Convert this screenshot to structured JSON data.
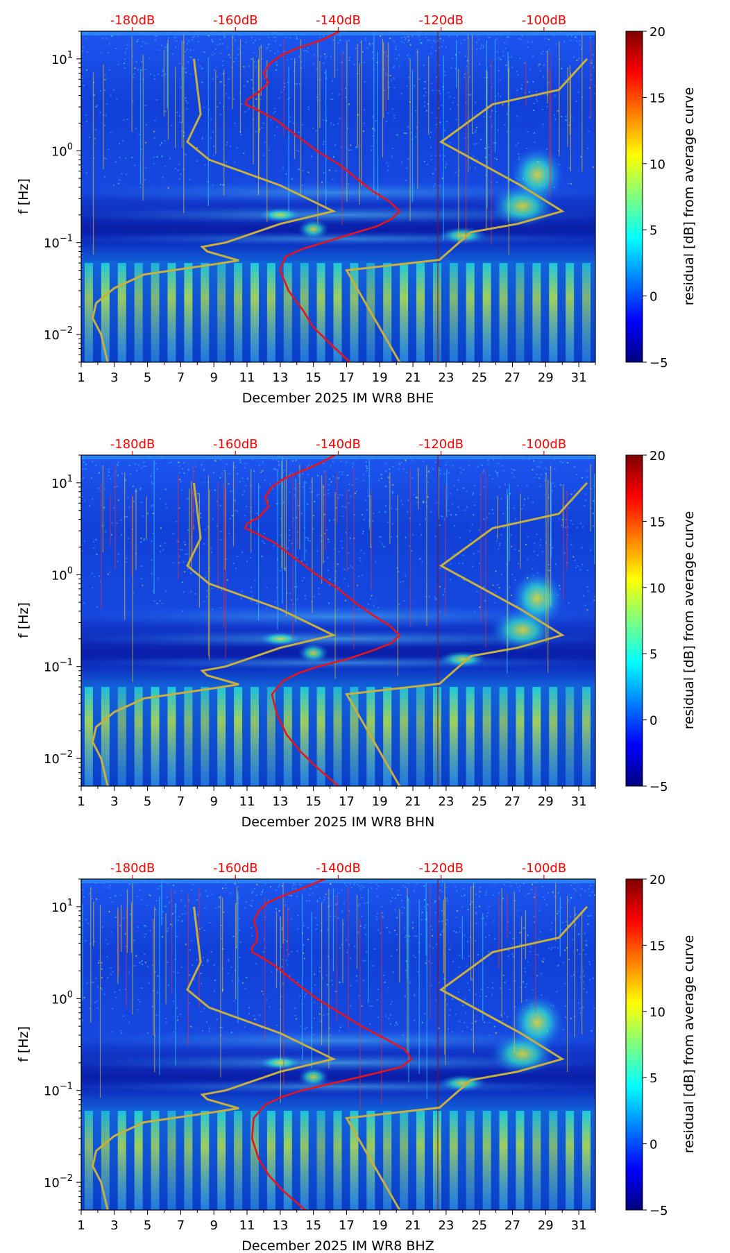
{
  "colorbar": {
    "label": "residual [dB] from average curve",
    "range": [
      -5,
      20
    ],
    "ticks": [
      "20",
      "15",
      "10",
      "5",
      "0",
      "−5"
    ],
    "tick_values": [
      20,
      15,
      10,
      5,
      0,
      -5
    ],
    "colormap": "jet",
    "colors": [
      "#00007f",
      "#0000ff",
      "#007fff",
      "#00ffff",
      "#7fff7f",
      "#ffff00",
      "#ff7f00",
      "#ff0000",
      "#7f0000"
    ]
  },
  "overlay_colors": {
    "median_curve": "#e8141c",
    "noise_models": "#c8b040",
    "db_labels": "#ff0000"
  },
  "chart_data": [
    {
      "type": "heatmap",
      "title": "December 2025 IM WR8  BHE",
      "xlabel": "December 2025 IM WR8  BHE",
      "ylabel": "f [Hz]",
      "xlim": [
        1,
        32
      ],
      "ylim": [
        0.005,
        20
      ],
      "yscale": "log",
      "x_ticks": [
        "1",
        "3",
        "5",
        "7",
        "9",
        "11",
        "13",
        "15",
        "17",
        "19",
        "21",
        "23",
        "25",
        "27",
        "29",
        "31"
      ],
      "y_ticks": [
        {
          "value": 10,
          "label": "10",
          "exp": "1"
        },
        {
          "value": 1,
          "label": "10",
          "exp": "0"
        },
        {
          "value": 0.1,
          "label": "10",
          "exp": "−1"
        },
        {
          "value": 0.01,
          "label": "10",
          "exp": "−2"
        }
      ],
      "db_axis": {
        "labels": [
          "-180dB",
          "-160dB",
          "-140dB",
          "-120dB",
          "-100dB"
        ],
        "day_positions": [
          4.1,
          10.3,
          16.5,
          22.7,
          28.9
        ]
      },
      "median_curve": {
        "name": "median PSD",
        "x": [
          17.2,
          16,
          15,
          14.4,
          13.5,
          13,
          13.3,
          14.3,
          15.6,
          17,
          18.8,
          19.7,
          20.2,
          19.6,
          18.6,
          17.6,
          16.6,
          15.2,
          13.9,
          12.7,
          11.6,
          10.9,
          11,
          11.6,
          12.3,
          12,
          12.4,
          13.1,
          14,
          15.5,
          16.6
        ],
        "y": [
          0.005,
          0.008,
          0.012,
          0.018,
          0.03,
          0.05,
          0.07,
          0.085,
          0.1,
          0.12,
          0.15,
          0.18,
          0.22,
          0.28,
          0.36,
          0.5,
          0.7,
          1,
          1.5,
          2.2,
          2.8,
          3.2,
          3.6,
          4.2,
          5.5,
          7,
          9,
          11,
          13,
          16,
          20
        ]
      },
      "noise_model_low": {
        "name": "NLNM",
        "x": [
          2.6,
          2.2,
          1.7,
          1.9,
          3,
          4.8,
          9,
          10.5,
          8.6,
          8.3,
          9.7,
          13,
          16.2,
          13,
          8.7,
          7.4,
          8.2,
          7.8
        ],
        "y": [
          0.005,
          0.01,
          0.015,
          0.022,
          0.032,
          0.045,
          0.058,
          0.064,
          0.08,
          0.09,
          0.1,
          0.16,
          0.22,
          0.42,
          0.8,
          1.25,
          2.5,
          10
        ]
      },
      "noise_model_high": {
        "name": "NHNM",
        "x": [
          20.2,
          17,
          22.6,
          24.5,
          27.3,
          30,
          27.5,
          22.7,
          25.8,
          29.8,
          31.5
        ],
        "y": [
          0.005,
          0.05,
          0.065,
          0.13,
          0.16,
          0.22,
          0.42,
          1.25,
          3.2,
          4.6,
          10
        ]
      }
    },
    {
      "type": "heatmap",
      "title": "December 2025 IM WR8  BHN",
      "xlabel": "December 2025 IM WR8  BHN",
      "ylabel": "f [Hz]",
      "xlim": [
        1,
        32
      ],
      "ylim": [
        0.005,
        20
      ],
      "yscale": "log",
      "x_ticks": [
        "1",
        "3",
        "5",
        "7",
        "9",
        "11",
        "13",
        "15",
        "17",
        "19",
        "21",
        "23",
        "25",
        "27",
        "29",
        "31"
      ],
      "y_ticks": [
        {
          "value": 10,
          "label": "10",
          "exp": "1"
        },
        {
          "value": 1,
          "label": "10",
          "exp": "0"
        },
        {
          "value": 0.1,
          "label": "10",
          "exp": "−1"
        },
        {
          "value": 0.01,
          "label": "10",
          "exp": "−2"
        }
      ],
      "db_axis": {
        "labels": [
          "-180dB",
          "-160dB",
          "-140dB",
          "-120dB",
          "-100dB"
        ],
        "day_positions": [
          4.1,
          10.3,
          16.5,
          22.7,
          28.9
        ]
      },
      "median_curve": {
        "name": "median PSD",
        "x": [
          16.5,
          15.2,
          14.2,
          13.4,
          12.8,
          12.5,
          13.2,
          14.1,
          15.3,
          17,
          18.6,
          19.7,
          20.2,
          19.6,
          18.6,
          17.5,
          16.5,
          15.2,
          13.9,
          12.7,
          11.6,
          10.9,
          11,
          11.7,
          12.3,
          12.1,
          12.5,
          13.2,
          14.1,
          15.3,
          16.3
        ],
        "y": [
          0.005,
          0.008,
          0.012,
          0.018,
          0.03,
          0.05,
          0.07,
          0.085,
          0.1,
          0.12,
          0.15,
          0.18,
          0.22,
          0.28,
          0.36,
          0.5,
          0.7,
          1,
          1.5,
          2.2,
          2.8,
          3.2,
          3.6,
          4.2,
          5.5,
          7,
          9,
          11,
          13,
          16,
          20
        ]
      },
      "noise_model_low": {
        "name": "NLNM",
        "x": [
          2.6,
          2.2,
          1.7,
          1.9,
          3,
          4.8,
          9,
          10.5,
          8.6,
          8.3,
          9.7,
          13,
          16.2,
          13,
          8.7,
          7.4,
          8.2,
          7.8
        ],
        "y": [
          0.005,
          0.01,
          0.015,
          0.022,
          0.032,
          0.045,
          0.058,
          0.064,
          0.08,
          0.09,
          0.1,
          0.16,
          0.22,
          0.42,
          0.8,
          1.25,
          2.5,
          10
        ]
      },
      "noise_model_high": {
        "name": "NHNM",
        "x": [
          20.2,
          17,
          22.6,
          24.5,
          27.3,
          30,
          27.5,
          22.7,
          25.8,
          29.8,
          31.5
        ],
        "y": [
          0.005,
          0.05,
          0.065,
          0.13,
          0.16,
          0.22,
          0.42,
          1.25,
          3.2,
          4.6,
          10
        ]
      }
    },
    {
      "type": "heatmap",
      "title": "December 2025 IM WR8  BHZ",
      "xlabel": "December 2025 IM WR8  BHZ",
      "ylabel": "f [Hz]",
      "xlim": [
        1,
        32
      ],
      "ylim": [
        0.005,
        20
      ],
      "yscale": "log",
      "x_ticks": [
        "1",
        "3",
        "5",
        "7",
        "9",
        "11",
        "13",
        "15",
        "17",
        "19",
        "21",
        "23",
        "25",
        "27",
        "29",
        "31"
      ],
      "y_ticks": [
        {
          "value": 10,
          "label": "10",
          "exp": "1"
        },
        {
          "value": 1,
          "label": "10",
          "exp": "0"
        },
        {
          "value": 0.1,
          "label": "10",
          "exp": "−1"
        },
        {
          "value": 0.01,
          "label": "10",
          "exp": "−2"
        }
      ],
      "db_axis": {
        "labels": [
          "-180dB",
          "-160dB",
          "-140dB",
          "-120dB",
          "-100dB"
        ],
        "day_positions": [
          4.1,
          10.3,
          16.5,
          22.7,
          28.9
        ]
      },
      "median_curve": {
        "name": "median PSD",
        "x": [
          14.5,
          13.2,
          12.3,
          11.7,
          11.3,
          11.4,
          12.1,
          13.1,
          14.3,
          16.2,
          18.5,
          20.3,
          20.9,
          20.5,
          19.4,
          17.9,
          16.6,
          15.2,
          13.9,
          12.8,
          11.9,
          11.3,
          11.3,
          11.6,
          11.6,
          11.4,
          11.7,
          12.2,
          13.1,
          14.4,
          15.7
        ],
        "y": [
          0.005,
          0.008,
          0.012,
          0.018,
          0.03,
          0.05,
          0.07,
          0.085,
          0.1,
          0.12,
          0.15,
          0.18,
          0.22,
          0.28,
          0.36,
          0.5,
          0.7,
          1,
          1.5,
          2.2,
          2.8,
          3.2,
          3.6,
          4.2,
          5.5,
          7,
          9,
          11,
          13,
          16,
          20
        ]
      },
      "noise_model_low": {
        "name": "NLNM",
        "x": [
          2.6,
          2.2,
          1.7,
          1.9,
          3,
          4.8,
          9,
          10.5,
          8.6,
          8.3,
          9.7,
          13,
          16.2,
          13,
          8.7,
          7.4,
          8.2,
          7.8
        ],
        "y": [
          0.005,
          0.01,
          0.015,
          0.022,
          0.032,
          0.045,
          0.058,
          0.064,
          0.08,
          0.09,
          0.1,
          0.16,
          0.22,
          0.42,
          0.8,
          1.25,
          2.5,
          10
        ]
      },
      "noise_model_high": {
        "name": "NHNM",
        "x": [
          20.2,
          17,
          22.6,
          24.5,
          27.3,
          30,
          27.5,
          22.7,
          25.8,
          29.8,
          31.5
        ],
        "y": [
          0.005,
          0.05,
          0.065,
          0.13,
          0.16,
          0.22,
          0.42,
          1.25,
          3.2,
          4.6,
          10
        ]
      }
    }
  ]
}
